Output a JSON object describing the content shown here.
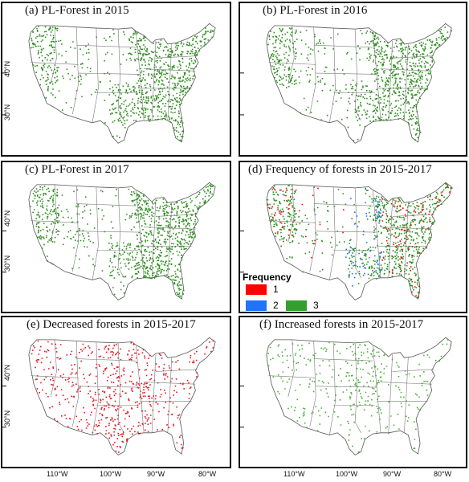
{
  "panels": [
    {
      "title": "(a) PL-Forest in 2015",
      "kind": "forest"
    },
    {
      "title": "(b) PL-Forest in 2016",
      "kind": "forest"
    },
    {
      "title": "(c) PL-Forest in 2017",
      "kind": "forest"
    },
    {
      "title": "(d) Frequency of forests in 2015-2017",
      "kind": "frequency"
    },
    {
      "title": "(e)  Decreased forests in 2015-2017",
      "kind": "decrease"
    },
    {
      "title": "(f)  Increased forests in 2015-2017",
      "kind": "increase"
    }
  ],
  "lat_labels": [
    "40°N",
    "30°N"
  ],
  "lon_labels": [
    "110°W",
    "100°W",
    "90°W",
    "80°W"
  ],
  "legend": {
    "title": "Frequency",
    "items": [
      {
        "label": "1",
        "color": "#ff0000"
      },
      {
        "label": "2",
        "color": "#1e73ff"
      },
      {
        "label": "3",
        "color": "#33a02c"
      }
    ]
  },
  "colors": {
    "forest": "#2f8f1f",
    "decrease": "#e8141e",
    "increase": "#4caf3a",
    "border": "#7a7a7a"
  }
}
